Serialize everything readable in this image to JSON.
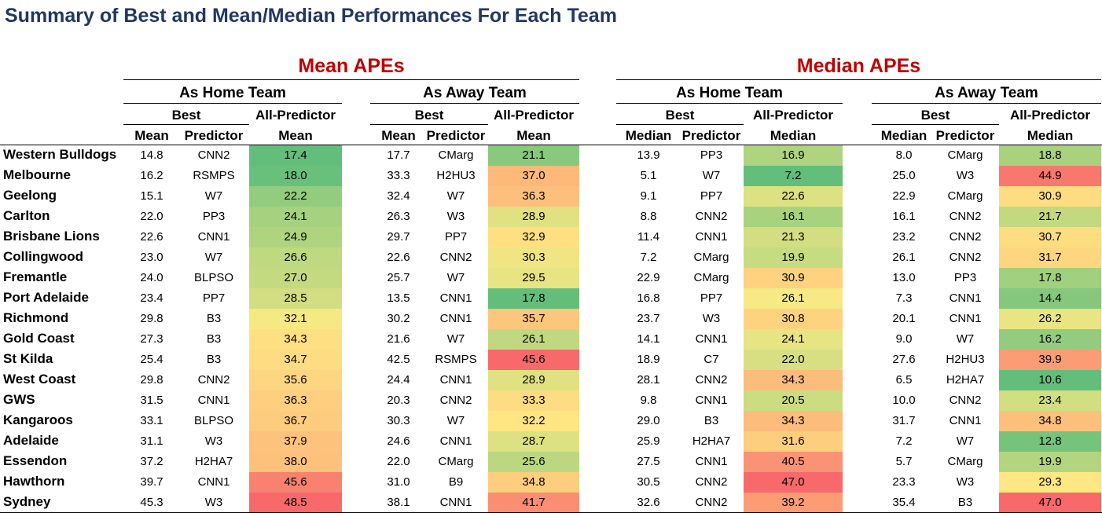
{
  "title": "Summary of Best and Mean/Median Performances For Each Team",
  "sections": [
    "Mean APEs",
    "Median APEs"
  ],
  "groups": [
    "As Home Team",
    "As Away Team",
    "As Home Team",
    "As Away Team"
  ],
  "sub1": {
    "best": "Best",
    "allpred": "All-Predictor"
  },
  "sub2": {
    "mean": "Mean",
    "predictor": "Predictor",
    "median": "Median"
  },
  "rows": [
    {
      "team": "Western Bulldogs",
      "c": [
        "14.8",
        "CNN2",
        "17.4",
        "17.7",
        "CMarg",
        "21.1",
        "13.9",
        "PP3",
        "16.9",
        "8.0",
        "CMarg",
        "18.8"
      ]
    },
    {
      "team": "Melbourne",
      "c": [
        "16.2",
        "RSMPS",
        "18.0",
        "33.3",
        "H2HU3",
        "37.0",
        "5.1",
        "W7",
        "7.2",
        "25.0",
        "W3",
        "44.9"
      ]
    },
    {
      "team": "Geelong",
      "c": [
        "15.1",
        "W7",
        "22.2",
        "32.4",
        "W7",
        "36.3",
        "9.1",
        "PP7",
        "22.6",
        "22.9",
        "CMarg",
        "30.9"
      ]
    },
    {
      "team": "Carlton",
      "c": [
        "22.0",
        "PP3",
        "24.1",
        "26.3",
        "W3",
        "28.9",
        "8.8",
        "CNN2",
        "16.1",
        "16.1",
        "CNN2",
        "21.7"
      ]
    },
    {
      "team": "Brisbane Lions",
      "c": [
        "22.6",
        "CNN1",
        "24.9",
        "29.7",
        "PP7",
        "32.9",
        "11.4",
        "CNN1",
        "21.3",
        "23.2",
        "CNN2",
        "30.7"
      ]
    },
    {
      "team": "Collingwood",
      "c": [
        "23.0",
        "W7",
        "26.6",
        "22.6",
        "CNN2",
        "30.3",
        "7.2",
        "CMarg",
        "19.9",
        "26.1",
        "CNN2",
        "31.7"
      ]
    },
    {
      "team": "Fremantle",
      "c": [
        "24.0",
        "BLPSO",
        "27.0",
        "25.7",
        "W7",
        "29.5",
        "22.9",
        "CMarg",
        "30.9",
        "13.0",
        "PP3",
        "17.8"
      ]
    },
    {
      "team": "Port Adelaide",
      "c": [
        "23.4",
        "PP7",
        "28.5",
        "13.5",
        "CNN1",
        "17.8",
        "16.8",
        "PP7",
        "26.1",
        "7.3",
        "CNN1",
        "14.4"
      ]
    },
    {
      "team": "Richmond",
      "c": [
        "29.8",
        "B3",
        "32.1",
        "30.2",
        "CNN1",
        "35.7",
        "23.7",
        "W3",
        "30.8",
        "20.1",
        "CNN1",
        "26.2"
      ]
    },
    {
      "team": "Gold Coast",
      "c": [
        "27.3",
        "B3",
        "34.3",
        "21.6",
        "W7",
        "26.1",
        "14.1",
        "CNN1",
        "24.1",
        "9.0",
        "W7",
        "16.2"
      ]
    },
    {
      "team": "St Kilda",
      "c": [
        "25.4",
        "B3",
        "34.7",
        "42.5",
        "RSMPS",
        "45.6",
        "18.9",
        "C7",
        "22.0",
        "27.6",
        "H2HU3",
        "39.9"
      ]
    },
    {
      "team": "West Coast",
      "c": [
        "29.8",
        "CNN2",
        "35.6",
        "24.4",
        "CNN1",
        "28.9",
        "28.1",
        "CNN2",
        "34.3",
        "6.5",
        "H2HA7",
        "10.6"
      ]
    },
    {
      "team": "GWS",
      "c": [
        "31.5",
        "CNN1",
        "36.3",
        "20.3",
        "CNN2",
        "33.3",
        "9.8",
        "CNN1",
        "20.5",
        "10.0",
        "CNN2",
        "23.4"
      ]
    },
    {
      "team": "Kangaroos",
      "c": [
        "33.1",
        "BLPSO",
        "36.7",
        "30.3",
        "W7",
        "32.2",
        "29.0",
        "B3",
        "34.3",
        "31.7",
        "CNN1",
        "34.8"
      ]
    },
    {
      "team": "Adelaide",
      "c": [
        "31.1",
        "W3",
        "37.9",
        "24.6",
        "CNN1",
        "28.7",
        "25.9",
        "H2HA7",
        "31.6",
        "7.2",
        "W7",
        "12.8"
      ]
    },
    {
      "team": "Essendon",
      "c": [
        "37.2",
        "H2HA7",
        "38.0",
        "22.0",
        "CMarg",
        "25.6",
        "27.5",
        "CNN1",
        "40.5",
        "5.7",
        "CMarg",
        "19.9"
      ]
    },
    {
      "team": "Hawthorn",
      "c": [
        "39.7",
        "CNN1",
        "45.6",
        "31.0",
        "B9",
        "34.8",
        "30.5",
        "CNN2",
        "47.0",
        "23.3",
        "W3",
        "29.3"
      ]
    },
    {
      "team": "Sydney",
      "c": [
        "45.3",
        "W3",
        "48.5",
        "38.1",
        "CNN1",
        "41.7",
        "32.6",
        "CNN2",
        "39.2",
        "35.4",
        "B3",
        "47.0"
      ]
    }
  ]
}
